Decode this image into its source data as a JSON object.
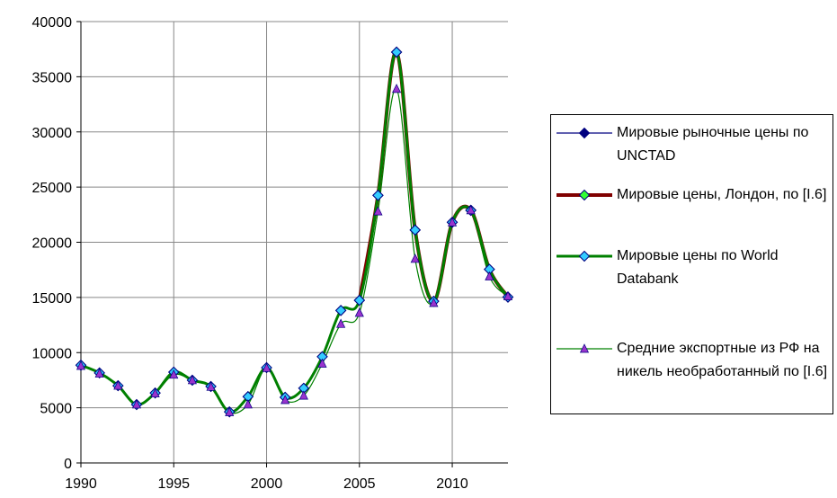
{
  "chart_data": {
    "type": "line",
    "x": [
      1990,
      1991,
      1992,
      1993,
      1994,
      1995,
      1996,
      1997,
      1998,
      1999,
      2000,
      2001,
      2002,
      2003,
      2004,
      2005,
      2006,
      2007,
      2008,
      2009,
      2010,
      2011,
      2012,
      2013
    ],
    "xlim": [
      1990,
      2013
    ],
    "xticks": [
      1990,
      1995,
      2000,
      2005,
      2010
    ],
    "ylim": [
      0,
      40000
    ],
    "yticks": [
      0,
      5000,
      10000,
      15000,
      20000,
      25000,
      30000,
      35000,
      40000
    ],
    "grid": true,
    "legend": "right",
    "series": [
      {
        "name": "Мировые рыночные цены по UNCTAD",
        "color": "#000080",
        "width": 1.2,
        "marker": "diamond",
        "marker_color": "#000080",
        "values": [
          8860,
          8160,
          7000,
          5290,
          6340,
          8230,
          7500,
          6930,
          4630,
          6010,
          8640,
          5950,
          6770,
          9630,
          13820,
          14740,
          24250,
          37230,
          21110,
          14650,
          21810,
          22890,
          17550,
          15030
        ]
      },
      {
        "name": "Мировые цены, Лондон, по [I.6]",
        "color": "#800000",
        "width": 4,
        "marker": "diamond",
        "marker_color": "#33ff33",
        "values": [
          null,
          null,
          null,
          null,
          null,
          null,
          null,
          null,
          null,
          null,
          null,
          null,
          null,
          null,
          null,
          14744,
          24254,
          37230,
          21111,
          14655,
          21809,
          22910,
          17548,
          15032
        ]
      },
      {
        "name": "Мировые цены по World Databank",
        "color": "#008000",
        "width": 3,
        "marker": "diamond",
        "marker_color": "#33ccff",
        "values": [
          8860,
          8160,
          7000,
          5290,
          6340,
          8230,
          7500,
          6930,
          4630,
          6010,
          8640,
          5950,
          6770,
          9630,
          13820,
          14740,
          24250,
          37230,
          21110,
          14650,
          21810,
          22890,
          17550,
          15030
        ]
      },
      {
        "name": "Средние экспортные из РФ на никель необработанный по [I.6]",
        "color": "#008000",
        "width": 1.2,
        "marker": "triangle",
        "marker_color": "#9933cc",
        "values": [
          8800,
          8100,
          7000,
          5300,
          6300,
          8000,
          7500,
          6900,
          4600,
          5300,
          8600,
          5700,
          6100,
          9000,
          12600,
          13600,
          22800,
          33900,
          18500,
          14500,
          21800,
          22900,
          16900,
          15100
        ]
      }
    ]
  }
}
